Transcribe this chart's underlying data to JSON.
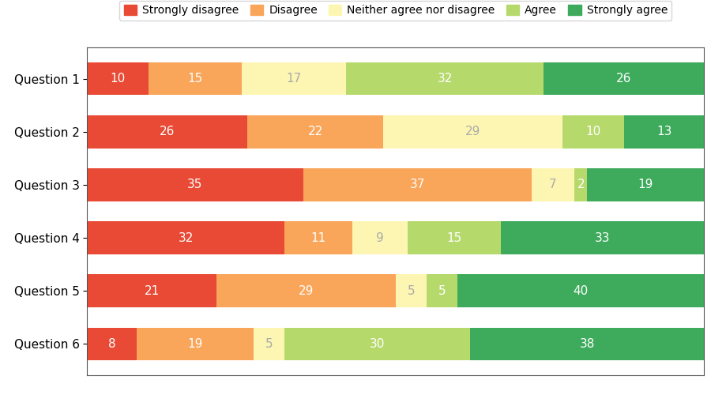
{
  "categories": [
    "Question 1",
    "Question 2",
    "Question 3",
    "Question 4",
    "Question 5",
    "Question 6"
  ],
  "series": [
    {
      "label": "Strongly disagree",
      "color": "#e84a35",
      "values": [
        10,
        26,
        35,
        32,
        21,
        8
      ]
    },
    {
      "label": "Disagree",
      "color": "#f9a55a",
      "values": [
        15,
        22,
        37,
        11,
        29,
        19
      ]
    },
    {
      "label": "Neither agree nor disagree",
      "color": "#fdf6b2",
      "values": [
        17,
        29,
        7,
        9,
        5,
        5
      ]
    },
    {
      "label": "Agree",
      "color": "#b5d96b",
      "values": [
        32,
        10,
        2,
        15,
        5,
        30
      ]
    },
    {
      "label": "Strongly agree",
      "color": "#3daa5c",
      "values": [
        26,
        13,
        19,
        33,
        40,
        38
      ]
    }
  ],
  "text_color_light": "#ffffff",
  "text_color_dark": "#aaaaaa",
  "bar_height": 0.62,
  "figsize": [
    9.19,
    5.0
  ],
  "dpi": 100,
  "legend_fontsize": 10,
  "tick_fontsize": 11,
  "value_fontsize": 11,
  "background_color": "#ffffff",
  "spine_color": "#555555",
  "xlim": 100
}
